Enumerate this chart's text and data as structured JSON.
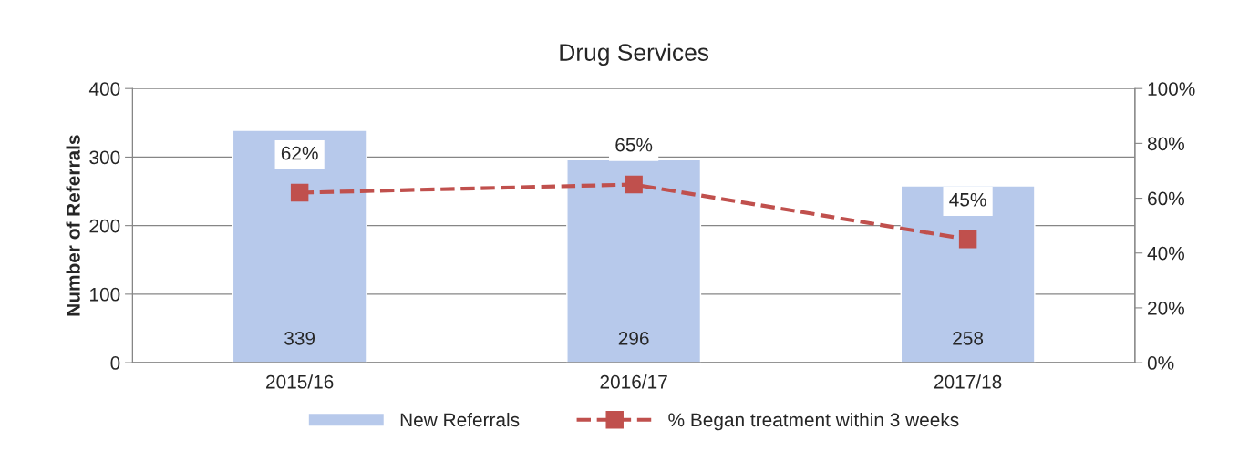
{
  "chart_data": {
    "type": "bar",
    "title": "Drug Services",
    "ylabel": "Number of Referrals",
    "categories": [
      "2015/16",
      "2016/17",
      "2017/18"
    ],
    "series": [
      {
        "name": "New Referrals",
        "color": "#b7c9eb",
        "values": [
          339,
          296,
          258
        ],
        "value_labels": [
          "339",
          "296",
          "258"
        ]
      },
      {
        "type": "line",
        "name": "% Began treatment within 3 weeks",
        "color": "#c0504d",
        "axis": "y2",
        "marker": "square",
        "line_style": "dashed",
        "values": [
          62,
          65,
          45
        ],
        "value_labels": [
          "62%",
          "65%",
          "45%"
        ]
      }
    ],
    "ylim": [
      0,
      400
    ],
    "yticks": [
      0,
      100,
      200,
      300,
      400
    ],
    "y2lim": [
      0,
      100
    ],
    "y2ticks": [
      {
        "value": 0,
        "label": "0%"
      },
      {
        "value": 20,
        "label": "20%"
      },
      {
        "value": 40,
        "label": "40%"
      },
      {
        "value": 60,
        "label": "60%"
      },
      {
        "value": 80,
        "label": "80%"
      },
      {
        "value": 100,
        "label": "100%"
      }
    ],
    "grid": "y",
    "legend": "bottom"
  }
}
